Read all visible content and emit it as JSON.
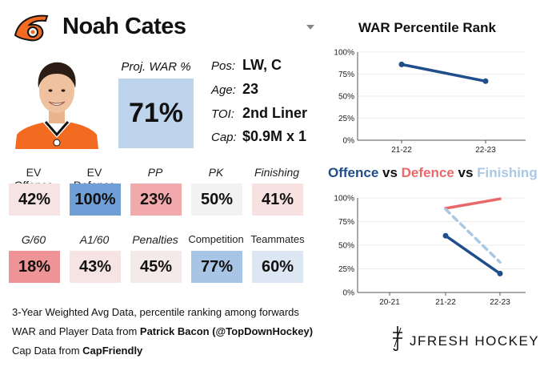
{
  "player": {
    "name": "Noah Cates",
    "proj_war_label": "Proj. WAR %",
    "proj_war_value": "71%",
    "info": [
      {
        "label": "Pos:",
        "value": "LW, C"
      },
      {
        "label": "Age:",
        "value": "23"
      },
      {
        "label": "TOI:",
        "value": "2nd Liner"
      },
      {
        "label": "Cap:",
        "value": "$0.9M x 1"
      }
    ]
  },
  "stats": [
    {
      "label": "EV Offence",
      "value": "42%",
      "italic": false,
      "color": "#f6e3e3"
    },
    {
      "label": "EV Defence",
      "value": "100%",
      "italic": false,
      "color": "#6f9fd6"
    },
    {
      "label": "PP",
      "value": "23%",
      "italic": true,
      "color": "#f2a9ab"
    },
    {
      "label": "PK",
      "value": "50%",
      "italic": true,
      "color": "#f2f2f2"
    },
    {
      "label": "Finishing",
      "value": "41%",
      "italic": true,
      "color": "#f7e1e1"
    },
    {
      "label": "G/60",
      "value": "18%",
      "italic": true,
      "color": "#ee9496"
    },
    {
      "label": "A1/60",
      "value": "43%",
      "italic": true,
      "color": "#f6e4e4"
    },
    {
      "label": "Penalties",
      "value": "45%",
      "italic": true,
      "color": "#f4eaea"
    },
    {
      "label": "Competition",
      "value": "77%",
      "italic": false,
      "color": "#a9c5e6"
    },
    {
      "label": "Teammates",
      "value": "60%",
      "italic": false,
      "color": "#dce7f3"
    }
  ],
  "footer": {
    "line1": "3-Year Weighted Avg Data, percentile ranking among forwards",
    "line2_prefix": "WAR and Player Data from ",
    "line2_source": "Patrick Bacon (@TopDownHockey)",
    "line3_prefix": "Cap Data from ",
    "line3_source": "CapFriendly"
  },
  "brand": "JFRESH HOCKEY",
  "colors": {
    "flyers_orange": "#f26b21",
    "offence": "#1f4e8c",
    "defence": "#e9696b",
    "finishing": "#a9c8e4"
  },
  "chart_data": [
    {
      "type": "line",
      "title": "WAR Percentile Rank",
      "x": [
        "21-22",
        "22-23"
      ],
      "ylim": [
        0,
        100
      ],
      "yticks": [
        "0%",
        "25%",
        "50%",
        "75%",
        "100%"
      ],
      "series": [
        {
          "values": [
            86,
            67
          ],
          "color": "#1f4e8c"
        }
      ]
    },
    {
      "type": "line",
      "title_parts": [
        {
          "text": "Offence",
          "color": "#1f4e8c"
        },
        {
          "text": " vs ",
          "color": "#111111"
        },
        {
          "text": "Defence",
          "color": "#e9696b"
        },
        {
          "text": " vs ",
          "color": "#111111"
        },
        {
          "text": "Finishing",
          "color": "#a9c8e4"
        }
      ],
      "x": [
        "20-21",
        "21-22",
        "22-23"
      ],
      "ylim": [
        0,
        100
      ],
      "yticks": [
        "0%",
        "25%",
        "50%",
        "75%",
        "100%"
      ],
      "series": [
        {
          "name": "Offence",
          "values": [
            null,
            60,
            20
          ],
          "color": "#1f4e8c",
          "dash": false,
          "points": true
        },
        {
          "name": "Defence",
          "values": [
            null,
            89,
            99
          ],
          "color": "#e9696b",
          "dash": false,
          "points": false
        },
        {
          "name": "Finishing",
          "values": [
            null,
            88,
            32
          ],
          "color": "#a9c8e4",
          "dash": true,
          "points": false
        }
      ]
    }
  ]
}
